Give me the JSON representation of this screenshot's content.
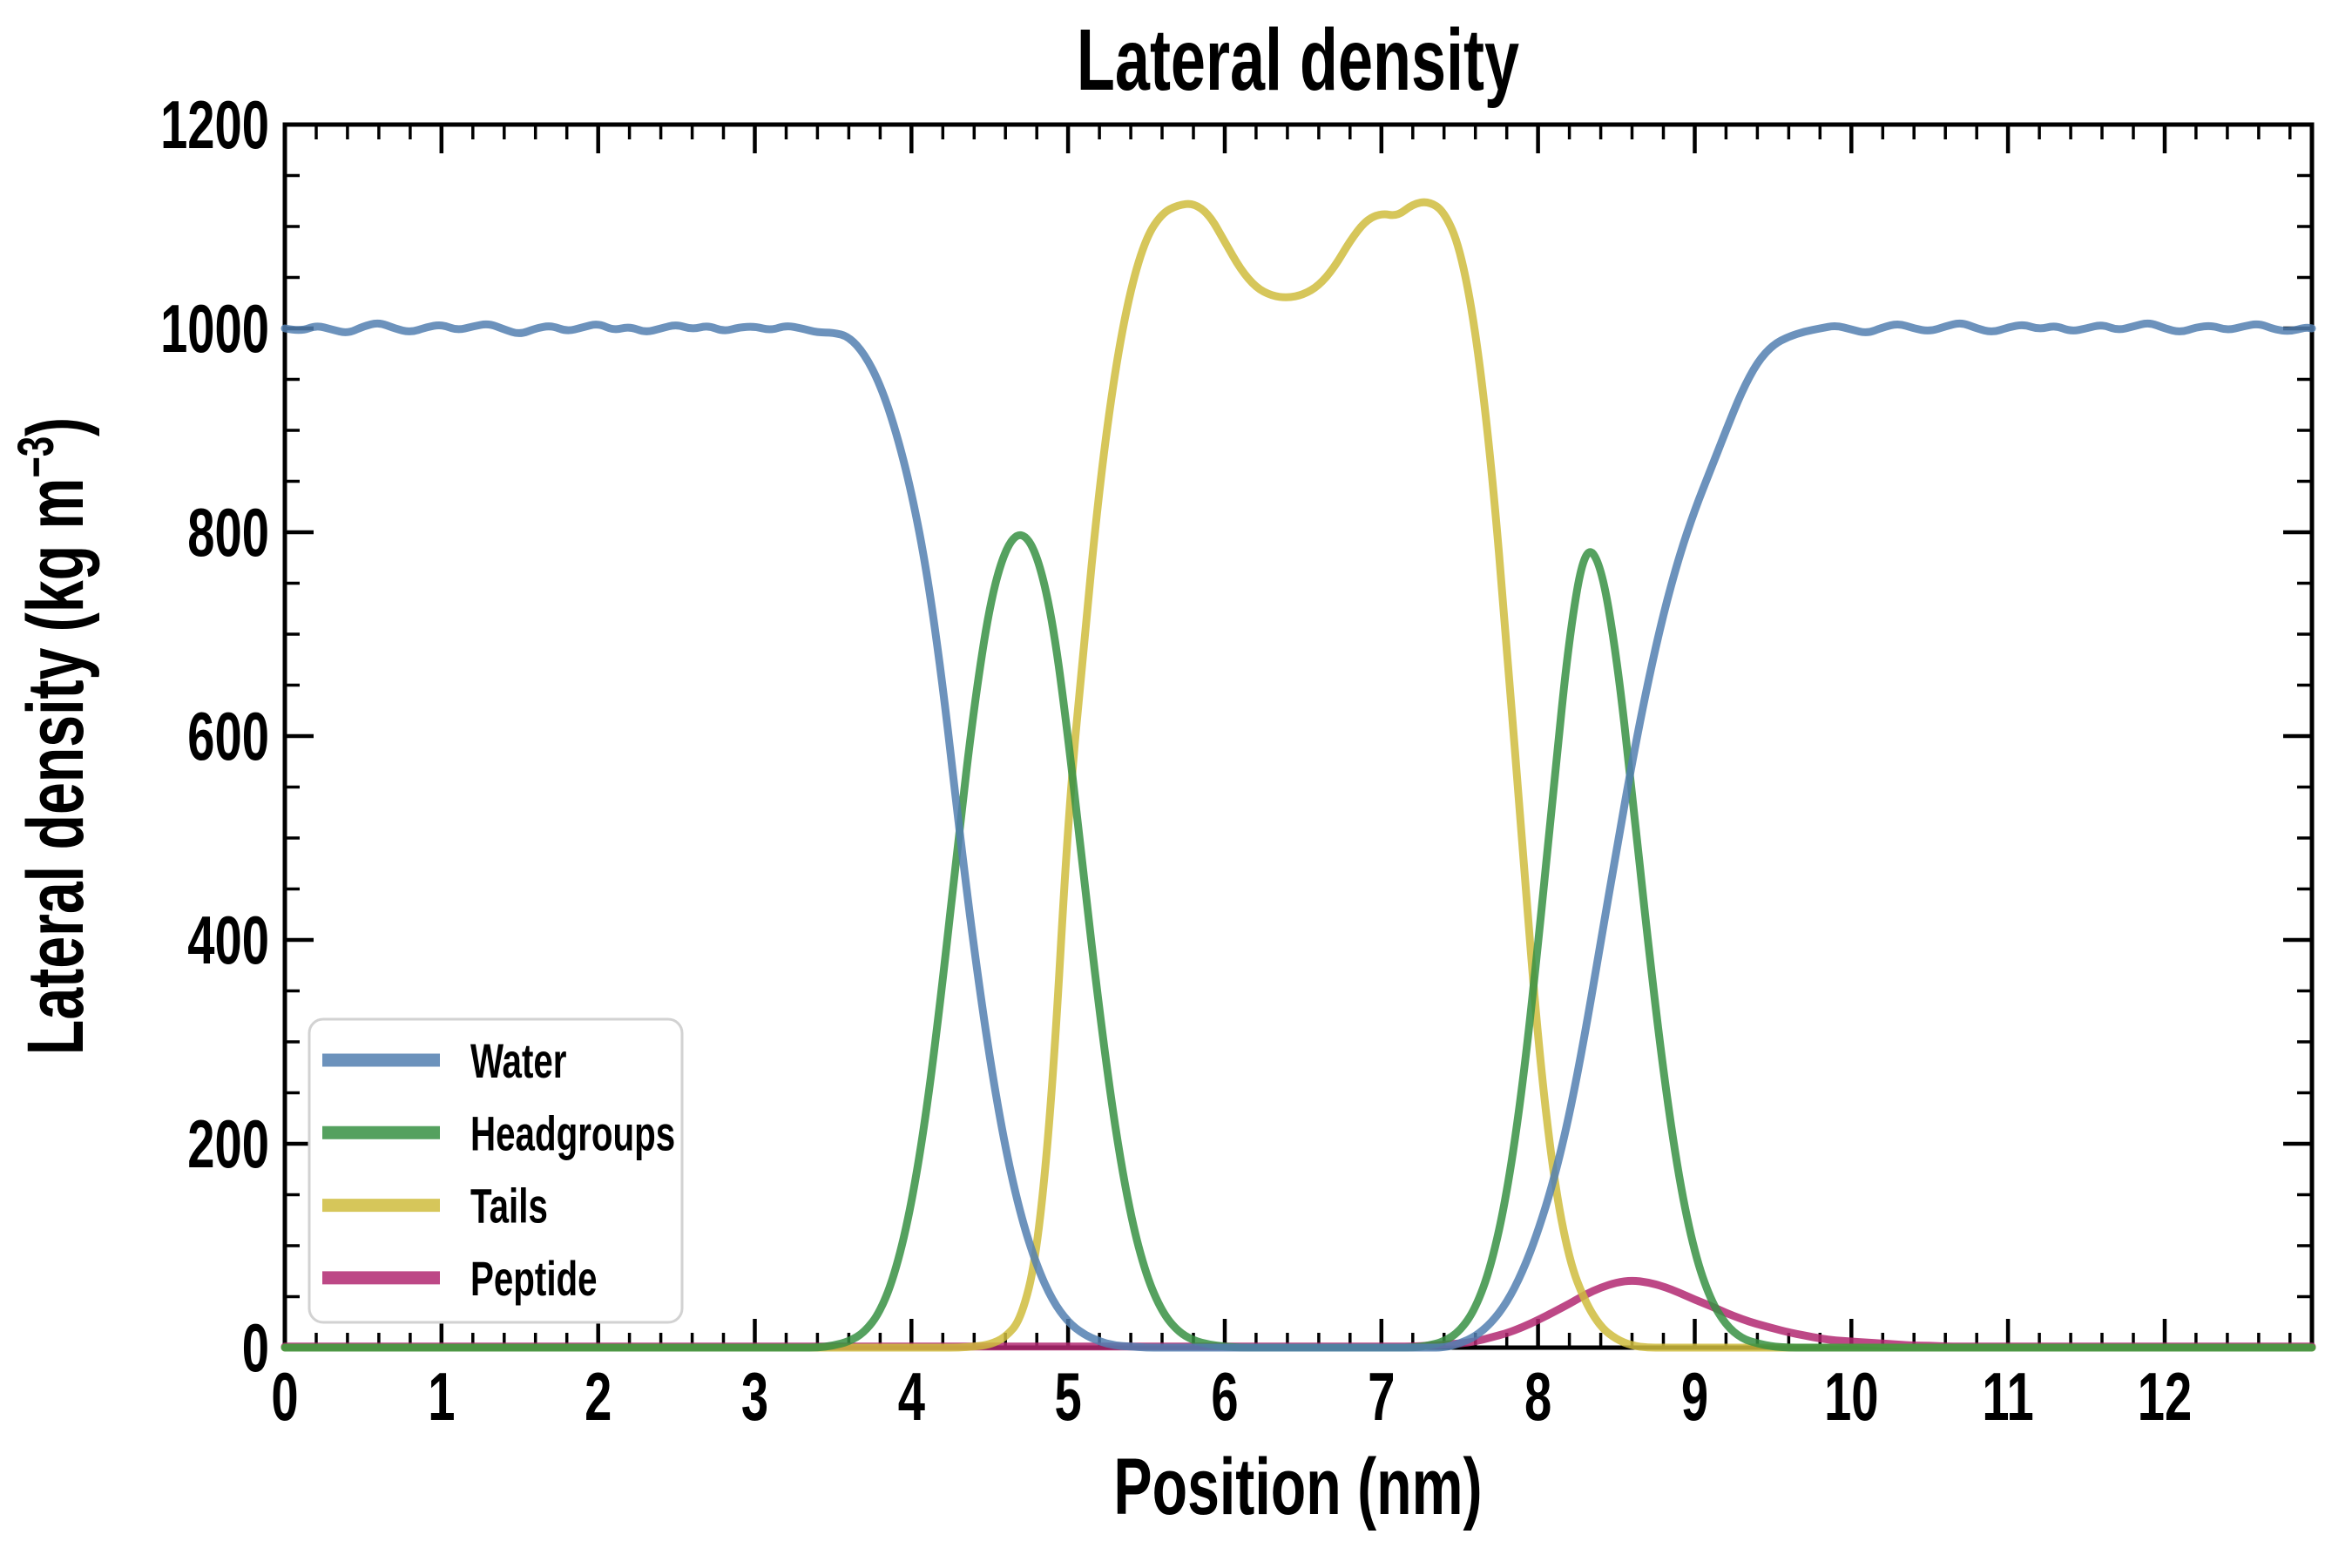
{
  "chart_data": {
    "type": "line",
    "title": "Lateral density",
    "xlabel": "Position (nm)",
    "ylabel_main": "Lateral density (kg m",
    "ylabel_sup": "−3",
    "ylabel_close": ")",
    "xlim": [
      0,
      12.94
    ],
    "ylim": [
      0,
      1200
    ],
    "x_major_ticks": [
      0,
      1,
      2,
      3,
      4,
      5,
      6,
      7,
      8,
      9,
      10,
      11,
      12
    ],
    "x_minor_step": 0.2,
    "y_major_ticks": [
      0,
      200,
      400,
      600,
      800,
      1000,
      1200
    ],
    "y_minor_step": 50,
    "grid": false,
    "background": "#ffffff",
    "axis_color": "#000000",
    "legend": {
      "position": "lower left",
      "border_color": "#d2d2d2"
    },
    "x_step": 0.1,
    "series": [
      {
        "name": "Water",
        "color": "#527FB0",
        "alpha": 0.85,
        "z": 4,
        "values": [
          1000,
          997,
          1003,
          999,
          995,
          1002,
          1006,
          1000,
          996,
          1001,
          1004,
          998,
          1002,
          1005,
          999,
          994,
          1000,
          1003,
          997,
          1001,
          1005,
          998,
          1002,
          996,
          1000,
          1004,
          999,
          1003,
          997,
          1001,
          1002,
          998,
          1003,
          1000,
          996,
          996,
          992,
          975,
          945,
          900,
          840,
          760,
          650,
          515,
          390,
          283,
          195,
          128,
          80,
          46,
          25,
          13,
          6,
          2,
          1,
          0,
          0,
          0,
          0,
          0,
          0,
          0,
          0,
          0,
          0,
          0,
          0,
          0,
          0,
          0,
          0,
          0,
          0,
          0,
          0,
          4,
          11,
          24,
          44,
          74,
          114,
          164,
          228,
          308,
          398,
          488,
          574,
          652,
          720,
          776,
          822,
          861,
          900,
          938,
          967,
          984,
          992,
          997,
          1000,
          1003,
          999,
          995,
          1001,
          1005,
          1000,
          997,
          1002,
          1006,
          1000,
          996,
          1001,
          1004,
          999,
          1003,
          997,
          1000,
          1004,
          998,
          1002,
          1006,
          1000,
          996,
          1001,
          1003,
          998,
          1002,
          1005,
          999,
          997,
          1001,
          1000
        ]
      },
      {
        "name": "Headgroups",
        "color": "#379043",
        "alpha": 0.85,
        "z": 3,
        "values": [
          0,
          0,
          0,
          0,
          0,
          0,
          0,
          0,
          0,
          0,
          0,
          0,
          0,
          0,
          0,
          0,
          0,
          0,
          0,
          0,
          0,
          0,
          0,
          0,
          0,
          0,
          0,
          0,
          0,
          0,
          0,
          0,
          0,
          0,
          0,
          2,
          6,
          15,
          35,
          75,
          140,
          235,
          360,
          500,
          630,
          730,
          785,
          802,
          780,
          715,
          600,
          462,
          330,
          215,
          128,
          70,
          35,
          16,
          7,
          3,
          1,
          0,
          0,
          0,
          0,
          0,
          0,
          0,
          0,
          0,
          0,
          0,
          0,
          2,
          6,
          16,
          38,
          80,
          150,
          255,
          395,
          550,
          700,
          788,
          770,
          680,
          545,
          400,
          270,
          165,
          92,
          47,
          22,
          9,
          4,
          1,
          0,
          0,
          0,
          0,
          0,
          0,
          0,
          0,
          0,
          0,
          0,
          0,
          0,
          0,
          0,
          0,
          0,
          0,
          0,
          0,
          0,
          0,
          0,
          0,
          0,
          0,
          0,
          0,
          0,
          0,
          0,
          0,
          0,
          0,
          0
        ]
      },
      {
        "name": "Tails",
        "color": "#CFBC3D",
        "alpha": 0.85,
        "z": 2,
        "values": [
          0,
          0,
          0,
          0,
          0,
          0,
          0,
          0,
          0,
          0,
          0,
          0,
          0,
          0,
          0,
          0,
          0,
          0,
          0,
          0,
          0,
          0,
          0,
          0,
          0,
          0,
          0,
          0,
          0,
          0,
          0,
          0,
          0,
          0,
          0,
          0,
          0,
          0,
          0,
          0,
          0,
          0,
          0,
          0,
          1,
          3,
          10,
          28,
          90,
          250,
          520,
          690,
          845,
          960,
          1040,
          1090,
          1113,
          1121,
          1123,
          1112,
          1085,
          1058,
          1040,
          1032,
          1030,
          1033,
          1042,
          1060,
          1086,
          1106,
          1113,
          1110,
          1122,
          1125,
          1115,
          1080,
          1000,
          870,
          690,
          490,
          300,
          165,
          85,
          45,
          20,
          8,
          2,
          0,
          0,
          0,
          0,
          0,
          0,
          0,
          0,
          0,
          0,
          0,
          0,
          0,
          0,
          0,
          0,
          0,
          0,
          0,
          0,
          0,
          0,
          0,
          0,
          0,
          0,
          0,
          0,
          0,
          0,
          0,
          0,
          0,
          0,
          0,
          0,
          0,
          0,
          0,
          0,
          0,
          0,
          0,
          0
        ]
      },
      {
        "name": "Peptide",
        "color": "#B22871",
        "alpha": 0.85,
        "z": 1,
        "values": [
          1,
          1,
          1,
          1,
          1,
          1,
          1,
          1,
          1,
          1,
          1,
          1,
          1,
          1,
          1,
          1,
          1,
          1,
          1,
          1,
          1,
          1,
          1,
          1,
          1,
          1,
          1,
          1,
          1,
          1,
          1,
          1,
          1,
          1,
          1,
          1,
          1,
          1,
          1,
          1,
          1,
          1,
          1,
          1,
          1,
          1,
          1,
          1,
          1,
          1,
          1,
          1,
          1,
          1,
          1,
          1,
          1,
          1,
          1,
          1,
          1,
          1,
          1,
          1,
          1,
          1,
          1,
          1,
          1,
          1,
          1,
          1,
          1,
          2,
          3,
          4,
          6,
          10,
          14,
          20,
          27,
          35,
          43,
          52,
          59,
          64,
          66,
          64,
          60,
          54,
          47,
          41,
          34,
          28,
          23,
          19,
          15,
          12,
          9,
          7,
          6,
          5,
          4,
          3,
          2,
          2,
          1,
          1,
          1,
          1,
          1,
          1,
          1,
          1,
          1,
          1,
          1,
          1,
          1,
          1,
          1,
          1,
          1,
          1,
          1,
          1,
          1,
          1,
          1,
          1,
          1
        ]
      }
    ]
  }
}
